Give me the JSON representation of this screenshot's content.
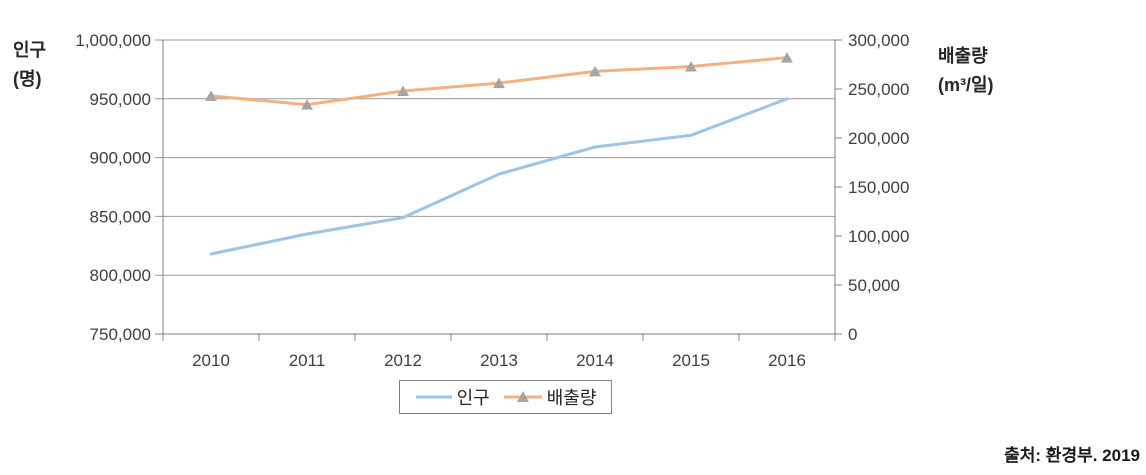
{
  "axes": {
    "left": {
      "line1": "인구",
      "line2": "(명)"
    },
    "right": {
      "line1": "배출량",
      "line2": "(m³/일)"
    }
  },
  "source_note": "출처: 환경부. 2019",
  "colors": {
    "population_line": "#9DC3E6",
    "emission_line": "#F2B183",
    "marker": "#A6A6A6",
    "gridline": "#9A9A9A",
    "axis": "#808080",
    "tick_text": "#404040"
  },
  "chart_data": {
    "type": "line",
    "categories": [
      "2010",
      "2011",
      "2012",
      "2013",
      "2014",
      "2015",
      "2016"
    ],
    "series": [
      {
        "name": "인구",
        "axis": "left",
        "color": "#9DC3E6",
        "marker": "none",
        "values": [
          818000,
          835000,
          849000,
          886000,
          909000,
          919000,
          950000
        ]
      },
      {
        "name": "배출량",
        "axis": "right",
        "color": "#F2B183",
        "marker": "triangle",
        "marker_color": "#A6A6A6",
        "values": [
          243000,
          234000,
          248000,
          256000,
          268000,
          273000,
          282000
        ]
      }
    ],
    "left_axis": {
      "label": "인구 (명)",
      "min": 750000,
      "max": 1000000,
      "step": 50000,
      "ticks": [
        "750,000",
        "800,000",
        "850,000",
        "900,000",
        "950,000",
        "1,000,000"
      ]
    },
    "right_axis": {
      "label": "배출량 (m³/일)",
      "min": 0,
      "max": 300000,
      "step": 50000,
      "ticks": [
        "0",
        "50,000",
        "100,000",
        "150,000",
        "200,000",
        "250,000",
        "300,000"
      ]
    },
    "grid": "horizontal",
    "legend_position": "bottom"
  }
}
